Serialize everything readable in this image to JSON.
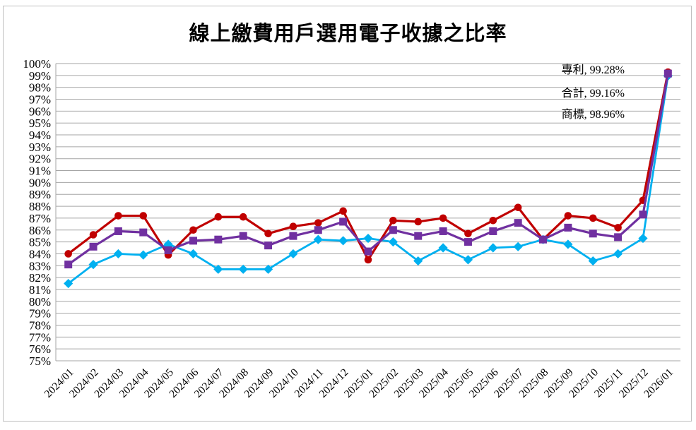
{
  "title": "線上繳費用戶選用電子收據之比率",
  "chart_data": {
    "type": "line",
    "title": "線上繳費用戶選用電子收據之比率",
    "xlabel": "",
    "ylabel": "",
    "ylim": [
      75,
      100
    ],
    "y_tick_step": 1,
    "y_tick_suffix": "%",
    "grid": true,
    "legend_position": "top-right-inside-data-labels",
    "categories": [
      "2024/01",
      "2024/02",
      "2024/03",
      "2024/04",
      "2024/05",
      "2024/06",
      "2024/07",
      "2024/08",
      "2024/09",
      "2024/10",
      "2024/11",
      "2024/12",
      "2025/01",
      "2025/02",
      "2025/03",
      "2025/04",
      "2025/05",
      "2025/06",
      "2025/07",
      "2025/08",
      "2025/09",
      "2025/10",
      "2025/11",
      "2025/12",
      "2026/01"
    ],
    "series": [
      {
        "name": "專利",
        "color": "#C00000",
        "marker": "circle",
        "values": [
          84.0,
          85.6,
          87.2,
          87.2,
          83.9,
          86.0,
          87.1,
          87.1,
          85.7,
          86.3,
          86.6,
          87.6,
          83.5,
          86.8,
          86.7,
          87.0,
          85.7,
          86.8,
          87.9,
          85.2,
          87.2,
          87.0,
          86.2,
          88.5,
          99.28
        ]
      },
      {
        "name": "合計",
        "color": "#7030A0",
        "marker": "square",
        "values": [
          83.1,
          84.6,
          85.9,
          85.8,
          84.3,
          85.1,
          85.2,
          85.5,
          84.7,
          85.5,
          86.0,
          86.7,
          84.2,
          86.0,
          85.5,
          85.9,
          85.0,
          85.9,
          86.6,
          85.2,
          86.2,
          85.7,
          85.4,
          87.3,
          99.16
        ]
      },
      {
        "name": "商標",
        "color": "#00B0F0",
        "marker": "diamond",
        "values": [
          81.5,
          83.1,
          84.0,
          83.9,
          84.8,
          84.0,
          82.7,
          82.7,
          82.7,
          84.0,
          85.2,
          85.1,
          85.3,
          85.0,
          83.4,
          84.5,
          83.5,
          84.5,
          84.6,
          85.2,
          84.8,
          83.4,
          84.0,
          85.3,
          98.96
        ]
      }
    ],
    "annotations": [
      {
        "text": "專利, 99.28%",
        "color": "#C00000"
      },
      {
        "text": "合計, 99.16%",
        "color": "#7030A0"
      },
      {
        "text": "商標, 98.96%",
        "color": "#00B0F0"
      }
    ],
    "y_tick_labels": [
      "100%",
      "99%",
      "98%",
      "97%",
      "96%",
      "95%",
      "94%",
      "93%",
      "92%",
      "91%",
      "90%",
      "89%",
      "88%",
      "87%",
      "86%",
      "85%",
      "84%",
      "83%",
      "82%",
      "81%",
      "80%",
      "79%",
      "78%",
      "77%",
      "76%",
      "75%"
    ],
    "gridline_color": "#A6A6A6",
    "background_color": "#FFFFFF"
  }
}
